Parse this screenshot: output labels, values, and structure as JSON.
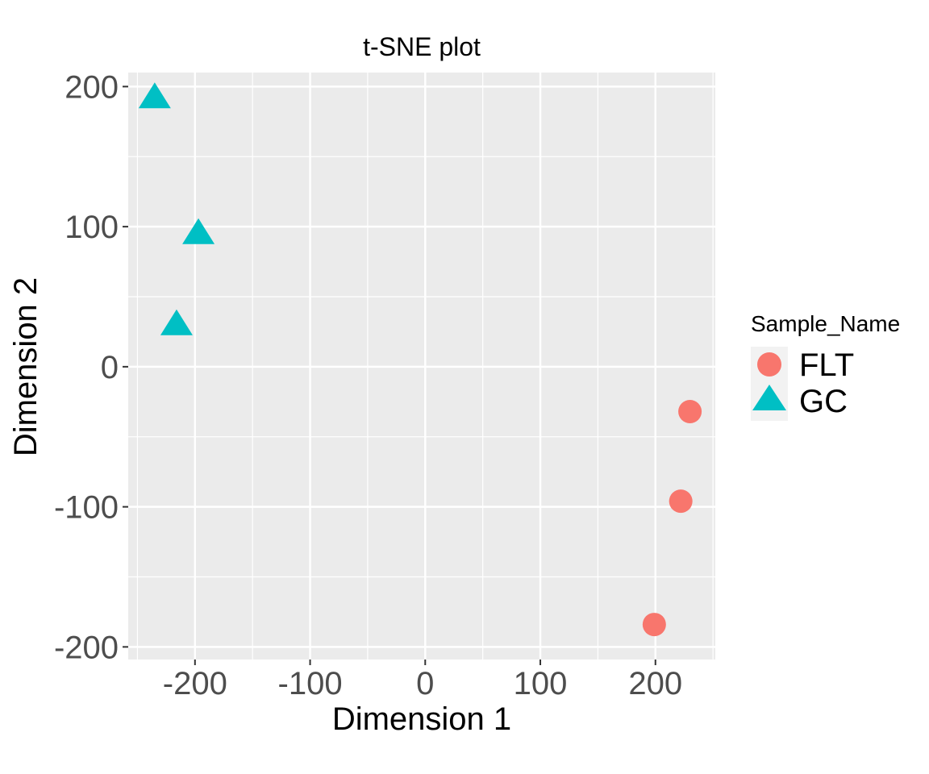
{
  "chart_data": {
    "type": "scatter",
    "title": "t-SNE plot",
    "xlabel": "Dimension 1",
    "ylabel": "Dimension 2",
    "xlim": [
      -258,
      252
    ],
    "ylim": [
      -209,
      210
    ],
    "x_ticks": [
      -200,
      -100,
      0,
      100,
      200
    ],
    "y_ticks": [
      -200,
      -100,
      0,
      100,
      200
    ],
    "x_tick_labels": [
      "-200",
      "-100",
      "0",
      "100",
      "200"
    ],
    "y_tick_labels": [
      "-200",
      "-100",
      "0",
      "100",
      "200"
    ],
    "grid": true,
    "legend": {
      "title": "Sample_Name",
      "position": "right"
    },
    "series": [
      {
        "name": "FLT",
        "shape": "circle",
        "color": "#F8766D",
        "points": [
          {
            "x": 230,
            "y": -32
          },
          {
            "x": 222,
            "y": -96
          },
          {
            "x": 199,
            "y": -184
          }
        ]
      },
      {
        "name": "GC",
        "shape": "triangle",
        "color": "#00BFC4",
        "points": [
          {
            "x": -235,
            "y": 192
          },
          {
            "x": -197,
            "y": 95
          },
          {
            "x": -216,
            "y": 30
          }
        ]
      }
    ]
  }
}
